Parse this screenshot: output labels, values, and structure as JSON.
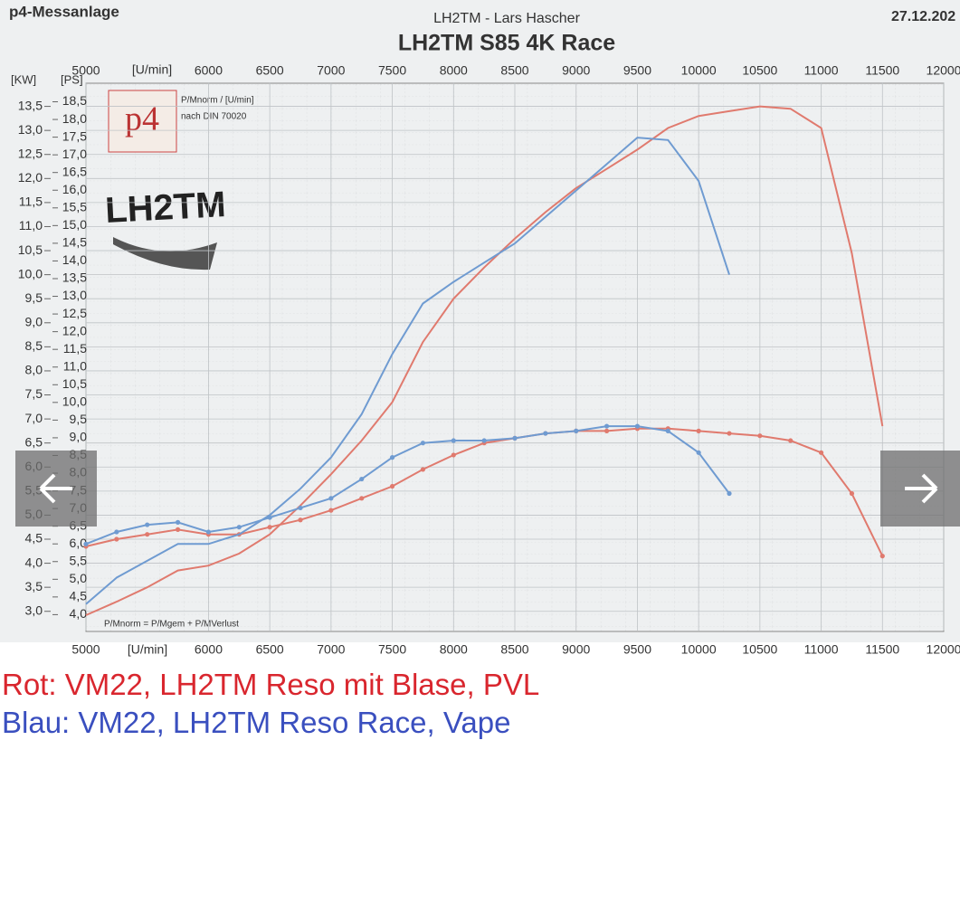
{
  "page": {
    "header_left": "p4-Messanlage",
    "header_center": "LH2TM - Lars Hascher",
    "header_right": "27.12.202",
    "logo_p4": "p4",
    "logo_note1": "P/Mnorm / [U/min]",
    "logo_note2": "nach DIN 70020",
    "logo_lh2tm": "LH2TM",
    "formula": "P/Mnorm = P/Mgem + P/MVerlust"
  },
  "chart_data": {
    "type": "line",
    "title": "LH2TM S85 4K Race",
    "xlabel": "[U/min]",
    "ylabel": "[KW]",
    "y2label": "[PS]",
    "x": [
      5000,
      5250,
      5500,
      5750,
      6000,
      6250,
      6500,
      6750,
      7000,
      7250,
      7500,
      7750,
      8000,
      8250,
      8500,
      8750,
      9000,
      9250,
      9500,
      9750,
      10000,
      10250,
      10500,
      10750,
      11000,
      11250,
      11500
    ],
    "xlim": [
      5000,
      12000
    ],
    "xticks": [
      5000,
      6000,
      6500,
      7000,
      7500,
      8000,
      8500,
      9000,
      9500,
      10000,
      10500,
      11000,
      11500,
      12000
    ],
    "ylim": [
      2.6,
      14.0
    ],
    "yticks": [
      {
        "value": 3,
        "label": "3,0"
      },
      {
        "value": 3.5,
        "label": "3,5"
      },
      {
        "value": 4,
        "label": "4,0"
      },
      {
        "value": 4.5,
        "label": "4,5"
      },
      {
        "value": 5,
        "label": "5,0"
      },
      {
        "value": 5.5,
        "label": "5,5"
      },
      {
        "value": 6,
        "label": "6,0"
      },
      {
        "value": 6.5,
        "label": "6,5"
      },
      {
        "value": 7,
        "label": "7,0"
      },
      {
        "value": 7.5,
        "label": "7,5"
      },
      {
        "value": 8,
        "label": "8,0"
      },
      {
        "value": 8.5,
        "label": "8,5"
      },
      {
        "value": 9,
        "label": "9,0"
      },
      {
        "value": 9.5,
        "label": "9,5"
      },
      {
        "value": 10,
        "label": "10,0"
      },
      {
        "value": 10.5,
        "label": "10,5"
      },
      {
        "value": 11,
        "label": "11,0"
      },
      {
        "value": 11.5,
        "label": "11,5"
      },
      {
        "value": 12,
        "label": "12,0"
      },
      {
        "value": 12.5,
        "label": "12,5"
      },
      {
        "value": 13,
        "label": "13,0"
      },
      {
        "value": 13.5,
        "label": "13,5"
      }
    ],
    "y2lim": [
      3.55,
      19.05
    ],
    "y2ticks": [
      {
        "value": 4,
        "label": "4,0"
      },
      {
        "value": 4.5,
        "label": "4,5"
      },
      {
        "value": 5,
        "label": "5,0"
      },
      {
        "value": 5.5,
        "label": "5,5"
      },
      {
        "value": 6,
        "label": "6,0"
      },
      {
        "value": 6.5,
        "label": "6,5"
      },
      {
        "value": 7,
        "label": "7,0"
      },
      {
        "value": 7.5,
        "label": "7,5"
      },
      {
        "value": 8,
        "label": "8,0"
      },
      {
        "value": 8.5,
        "label": "8,5"
      },
      {
        "value": 9,
        "label": "9,0"
      },
      {
        "value": 9.5,
        "label": "9,5"
      },
      {
        "value": 10,
        "label": "10,0"
      },
      {
        "value": 10.5,
        "label": "10,5"
      },
      {
        "value": 11,
        "label": "11,0"
      },
      {
        "value": 11.5,
        "label": "11,5"
      },
      {
        "value": 12,
        "label": "12,0"
      },
      {
        "value": 12.5,
        "label": "12,5"
      },
      {
        "value": 13,
        "label": "13,0"
      },
      {
        "value": 13.5,
        "label": "13,5"
      },
      {
        "value": 14,
        "label": "14,0"
      },
      {
        "value": 14.5,
        "label": "14,5"
      },
      {
        "value": 15,
        "label": "15,0"
      },
      {
        "value": 15.5,
        "label": "15,5"
      },
      {
        "value": 16,
        "label": "16,0"
      },
      {
        "value": 16.5,
        "label": "16,5"
      },
      {
        "value": 17,
        "label": "17,0"
      },
      {
        "value": 17.5,
        "label": "17,5"
      },
      {
        "value": 18,
        "label": "18,0"
      },
      {
        "value": 18.5,
        "label": "18,5"
      }
    ],
    "grid": true,
    "series": [
      {
        "name": "Rot: VM22, LH2TM Reso mit Blase, PVL",
        "color": "#e07a6e",
        "caption_color": "#d9262e",
        "values": [
          2.92,
          3.2,
          3.5,
          3.85,
          3.95,
          4.2,
          4.6,
          5.2,
          5.85,
          6.55,
          7.35,
          8.6,
          9.5,
          10.15,
          10.75,
          11.3,
          11.8,
          12.2,
          12.6,
          13.05,
          13.3,
          13.4,
          13.5,
          13.45,
          13.05,
          10.45,
          6.85
        ],
        "torque_values": [
          4.35,
          4.5,
          4.6,
          4.7,
          4.6,
          4.6,
          4.75,
          4.9,
          5.1,
          5.35,
          5.6,
          5.95,
          6.25,
          6.5,
          6.6,
          6.7,
          6.75,
          6.75,
          6.8,
          6.8,
          6.75,
          6.7,
          6.65,
          6.55,
          6.3,
          5.45,
          4.15
        ]
      },
      {
        "name": "Blau: VM22, LH2TM Reso Race, Vape",
        "color": "#6f9bd1",
        "caption_color": "#3a4fbf",
        "values": [
          3.15,
          3.7,
          4.05,
          4.4,
          4.4,
          4.6,
          5.0,
          5.55,
          6.2,
          7.1,
          8.35,
          9.4,
          9.85,
          10.25,
          10.65,
          11.2,
          11.75,
          12.3,
          12.85,
          12.8,
          11.95,
          10.0,
          null,
          null,
          null,
          null,
          null
        ],
        "torque_values": [
          4.4,
          4.65,
          4.8,
          4.85,
          4.65,
          4.75,
          4.95,
          5.15,
          5.35,
          5.75,
          6.2,
          6.5,
          6.55,
          6.55,
          6.6,
          6.7,
          6.75,
          6.85,
          6.85,
          6.75,
          6.3,
          5.45,
          null,
          null,
          null,
          null,
          null
        ]
      }
    ]
  }
}
